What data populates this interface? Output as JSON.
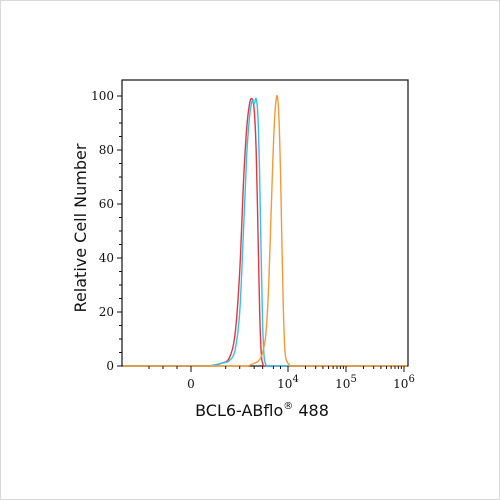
{
  "chart_data": {
    "type": "line",
    "title": "",
    "xlabel": "BCL6-ABflo",
    "xlabel_sup": "®",
    "xlabel_suffix": " 488",
    "ylabel": "Relative Cell Number",
    "xscale": "biexponential",
    "xlim": [
      -2000,
      1000000
    ],
    "ylim": [
      0,
      100
    ],
    "x_ticks": [
      {
        "value": 0,
        "base": "0",
        "exp": ""
      },
      {
        "value": 10000,
        "base": "10",
        "exp": "4"
      },
      {
        "value": 100000,
        "base": "10",
        "exp": "5"
      },
      {
        "value": 1000000,
        "base": "10",
        "exp": "6"
      }
    ],
    "y_ticks": [
      0,
      20,
      40,
      60,
      80,
      100
    ],
    "grid": false,
    "legend": "none",
    "series": [
      {
        "color": "#e8343a",
        "x": [
          200,
          400,
          600,
          800,
          1000,
          1200,
          1400,
          1600,
          1800,
          2000,
          2200,
          2400,
          2600,
          2800,
          3000,
          3200,
          3400
        ],
        "y": [
          0,
          1,
          3,
          12,
          35,
          68,
          88,
          97,
          99,
          95,
          80,
          50,
          20,
          5,
          1,
          0,
          0
        ]
      },
      {
        "color": "#36c0ea",
        "x": [
          200,
          400,
          600,
          800,
          1000,
          1200,
          1400,
          1600,
          1800,
          2000,
          2200,
          2400,
          2600,
          2800,
          3000,
          3200,
          3400,
          3600
        ],
        "y": [
          0,
          1,
          2,
          6,
          20,
          50,
          78,
          92,
          98,
          97,
          99,
          92,
          70,
          40,
          15,
          4,
          1,
          0
        ]
      },
      {
        "color": "#f39a35",
        "x": [
          1500,
          2000,
          2500,
          3000,
          3500,
          4000,
          4500,
          5000,
          5500,
          6000,
          6500,
          7000,
          7500,
          8000,
          8500,
          9000,
          10000,
          11000
        ],
        "y": [
          0,
          1,
          2,
          5,
          12,
          30,
          58,
          82,
          96,
          100,
          92,
          72,
          45,
          22,
          8,
          3,
          1,
          0
        ]
      }
    ]
  }
}
